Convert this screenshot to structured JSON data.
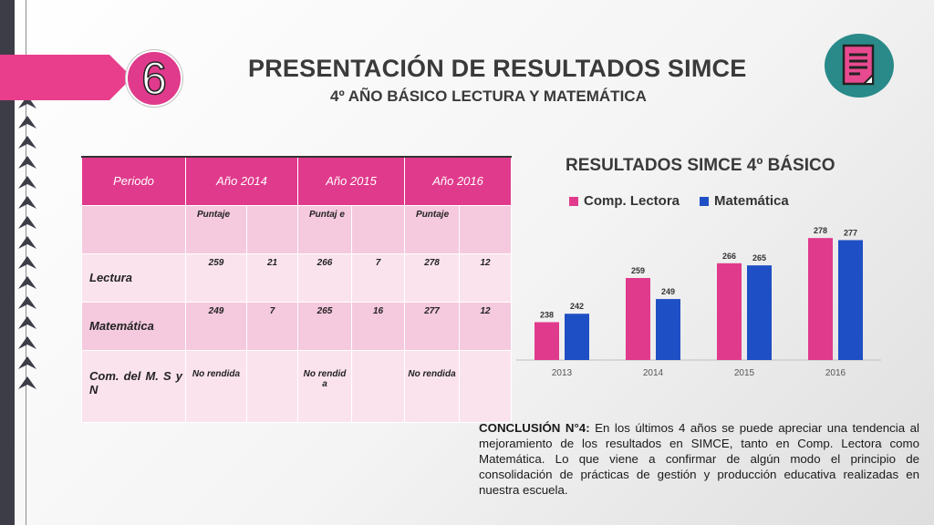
{
  "slide_number": "6",
  "title": "PRESENTACIÓN DE RESULTADOS SIMCE",
  "subtitle": "4º AÑO BÁSICO LECTURA Y MATEMÁTICA",
  "icon": "document-icon",
  "colors": {
    "accent": "#e03a8c",
    "series_2": "#1f4fc4",
    "dark_bar": "#3d3d48"
  },
  "table": {
    "headers": [
      "Periodo",
      "Año 2014",
      "Año 2015",
      "Año 2016"
    ],
    "subheader": [
      "Puntaje",
      "Puntaj e",
      "Puntaje"
    ],
    "rows": [
      {
        "label": "Lectura",
        "cells": [
          "259",
          "21",
          "266",
          "7",
          "278",
          "12"
        ]
      },
      {
        "label": "Matemática",
        "cells": [
          "249",
          "7",
          "265",
          "16",
          "277",
          "12"
        ]
      },
      {
        "label": "Com. del M. S y N",
        "cells": [
          "No rendida",
          "",
          "No rendid a",
          "",
          "No rendida",
          ""
        ]
      }
    ]
  },
  "chart_data": {
    "type": "bar",
    "title": "RESULTADOS SIMCE 4º BÁSICO",
    "categories": [
      "2013",
      "2014",
      "2015",
      "2016"
    ],
    "series": [
      {
        "name": "Comp. Lectora",
        "values": [
          238,
          259,
          266,
          278
        ],
        "color": "#e03a8c"
      },
      {
        "name": "Matemática",
        "values": [
          242,
          249,
          265,
          277
        ],
        "color": "#1f4fc4"
      }
    ],
    "ylim": [
      220,
      285
    ],
    "legend": "top",
    "grid": false
  },
  "conclusion": {
    "label": "CONCLUSIÓN N°4:",
    "text": "En los últimos 4 años se puede apreciar una tendencia al mejoramiento de los resultados en SIMCE, tanto en Comp. Lectora como Matemática. Lo que viene a confirmar de algún modo el principio de consolidación de prácticas de gestión y producción educativa realizadas en nuestra escuela."
  }
}
